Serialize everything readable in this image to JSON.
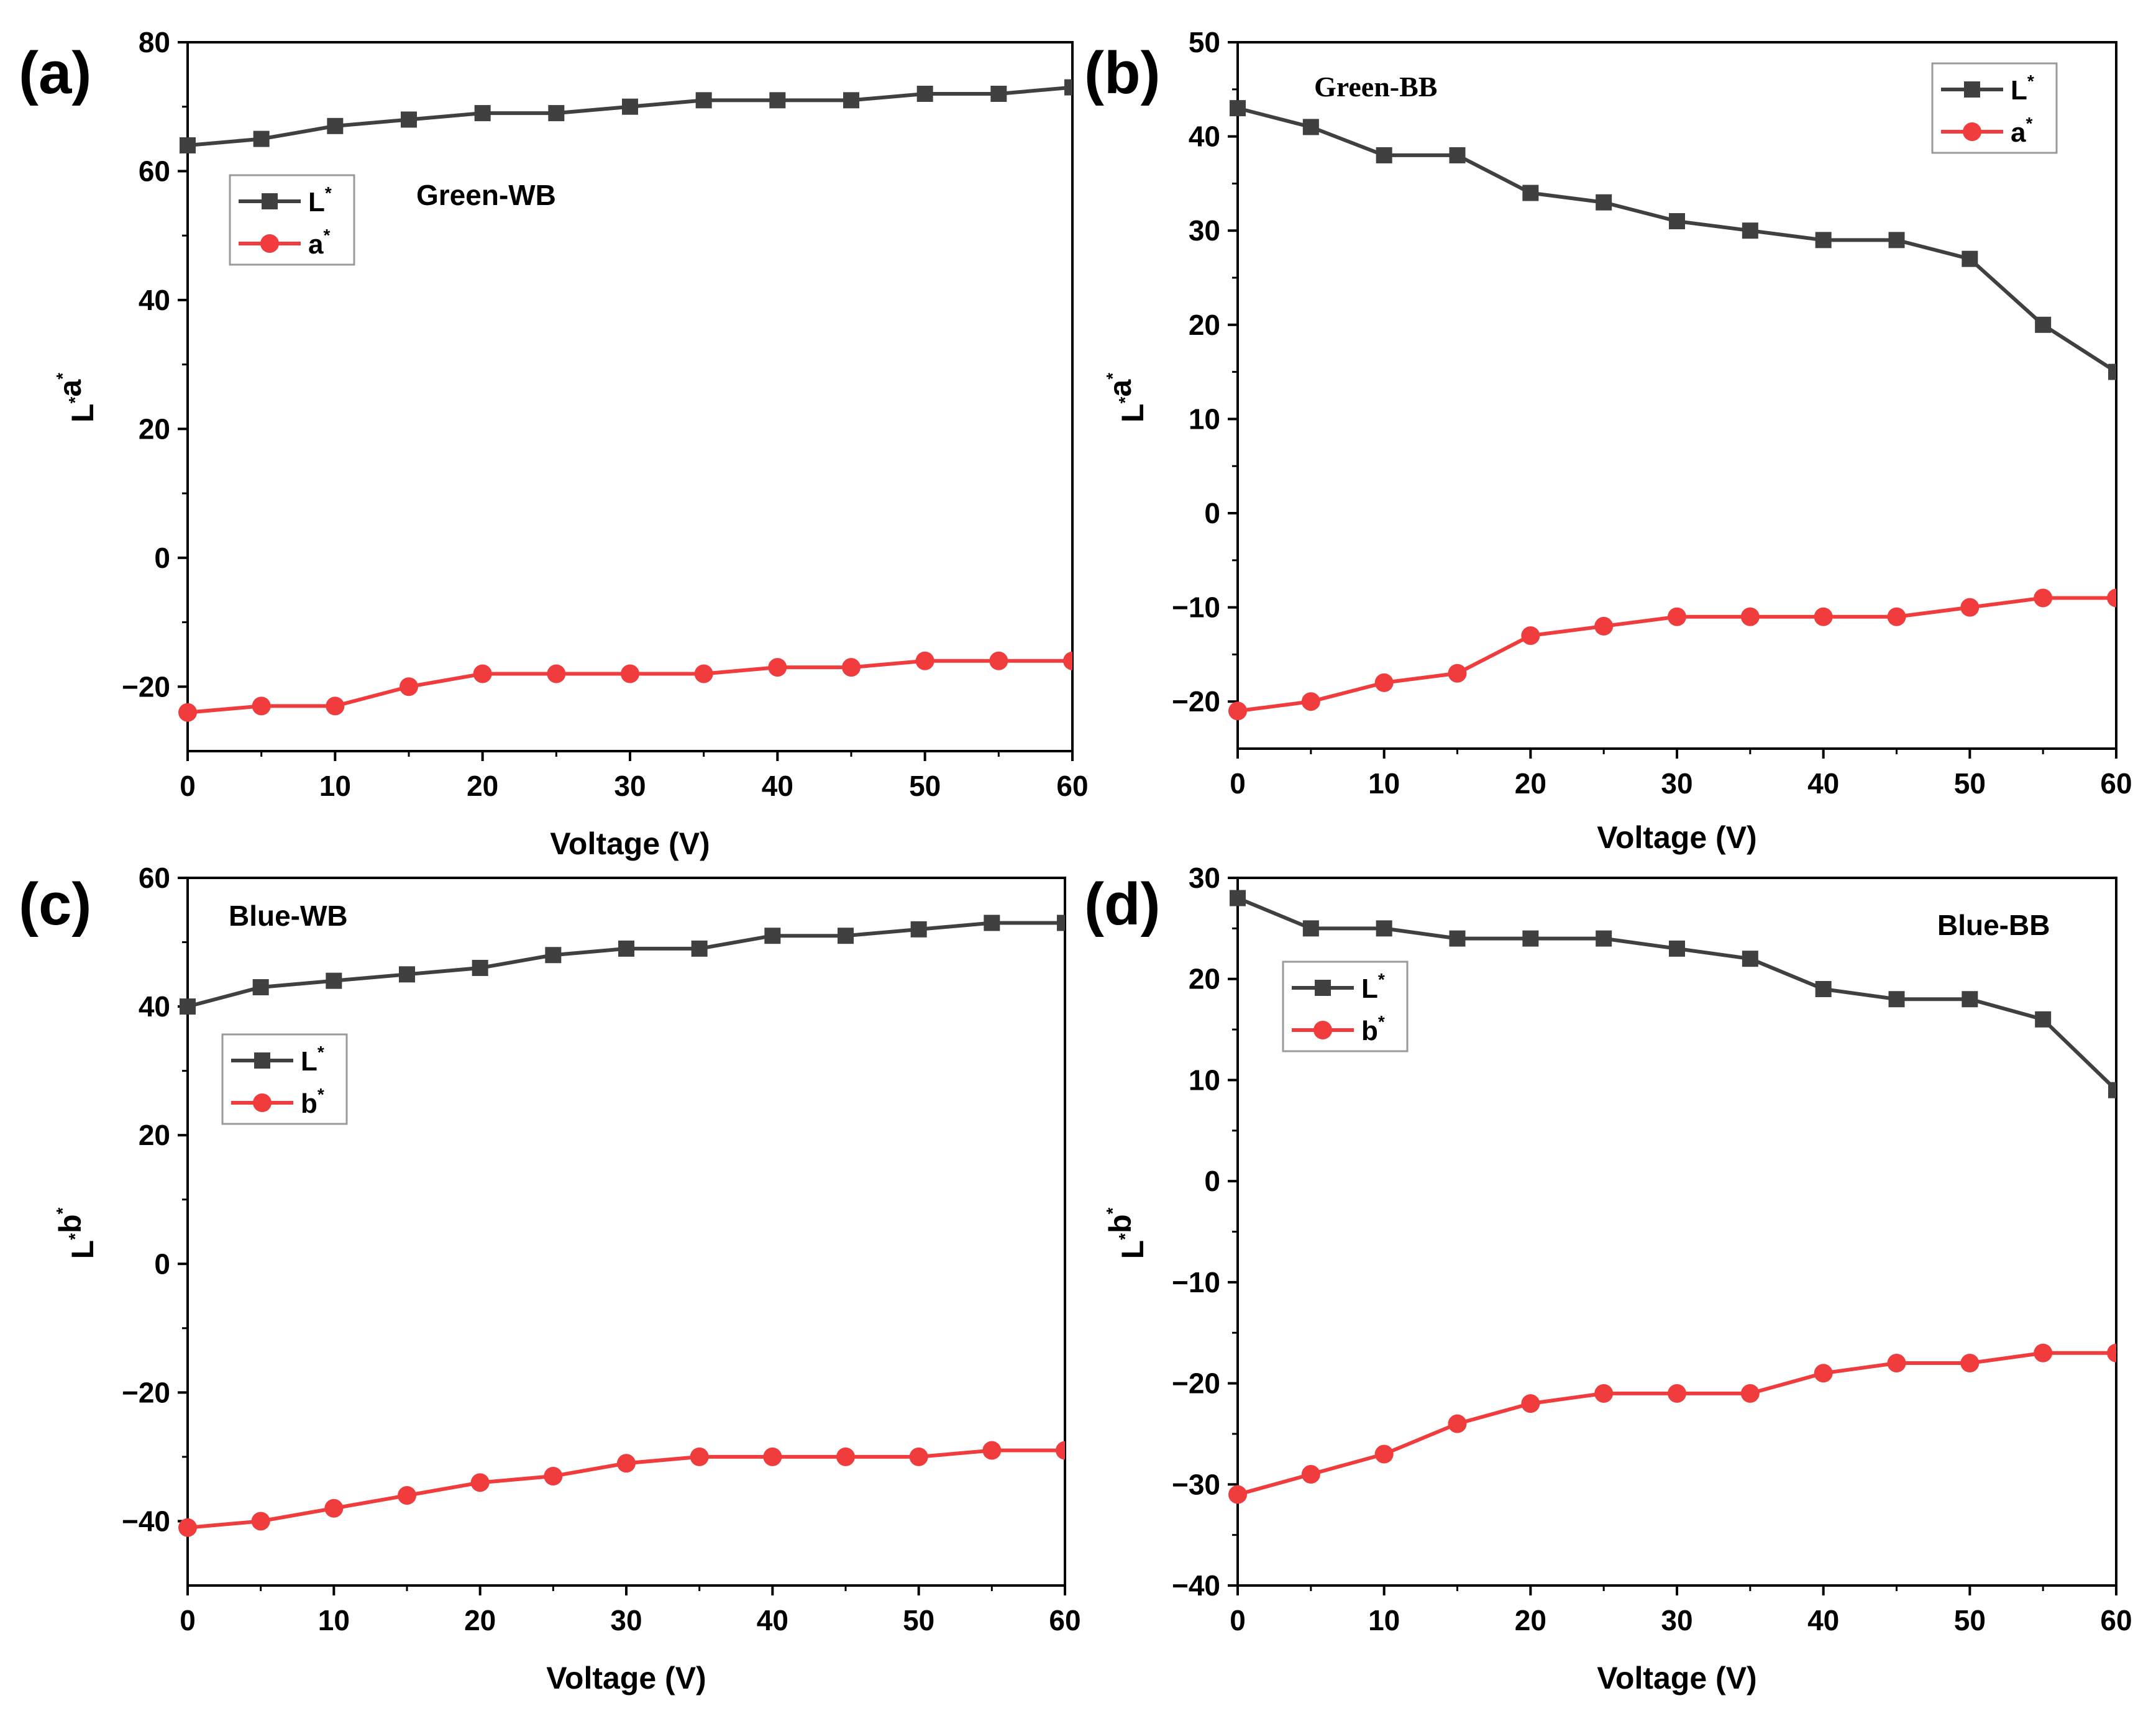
{
  "chart_data": [
    {
      "type": "line",
      "panel_label": "(a)",
      "annotation": "Green-WB",
      "xlabel": "Voltage (V)",
      "ylabel": "L*a*",
      "xlim": [
        0,
        60
      ],
      "ylim": [
        -30,
        80
      ],
      "xticks": [
        0,
        10,
        20,
        30,
        40,
        50,
        60
      ],
      "yticks": [
        -20,
        0,
        20,
        40,
        60,
        80
      ],
      "grid": false,
      "legend_placement": "upper-left",
      "x": [
        0,
        5,
        10,
        15,
        20,
        25,
        30,
        35,
        40,
        45,
        50,
        55,
        60
      ],
      "series": [
        {
          "name": "L*",
          "color": "#404040",
          "marker": "square",
          "values": [
            64,
            65,
            67,
            68,
            69,
            69,
            70,
            71,
            71,
            71,
            72,
            72,
            73
          ]
        },
        {
          "name": "a*",
          "color": "#f03c3c",
          "marker": "circle",
          "values": [
            -24,
            -23,
            -23,
            -20,
            -18,
            -18,
            -18,
            -18,
            -17,
            -17,
            -16,
            -16,
            -16
          ]
        }
      ]
    },
    {
      "type": "line",
      "panel_label": "(b)",
      "annotation": "Green-BB",
      "xlabel": "Voltage (V)",
      "ylabel": "L*a*",
      "xlim": [
        0,
        60
      ],
      "ylim": [
        -25,
        50
      ],
      "xticks": [
        0,
        10,
        20,
        30,
        40,
        50,
        60
      ],
      "yticks": [
        -20,
        -10,
        0,
        10,
        20,
        30,
        40,
        50
      ],
      "grid": false,
      "legend_placement": "top-right",
      "x": [
        0,
        5,
        10,
        15,
        20,
        25,
        30,
        35,
        40,
        45,
        50,
        55,
        60
      ],
      "series": [
        {
          "name": "L*",
          "color": "#404040",
          "marker": "square",
          "values": [
            43,
            41,
            38,
            38,
            34,
            33,
            31,
            30,
            29,
            29,
            27,
            20,
            15
          ]
        },
        {
          "name": "a*",
          "color": "#f03c3c",
          "marker": "circle",
          "values": [
            -21,
            -20,
            -18,
            -17,
            -13,
            -12,
            -11,
            -11,
            -11,
            -11,
            -10,
            -9,
            -9
          ]
        }
      ]
    },
    {
      "type": "line",
      "panel_label": "(c)",
      "annotation": "Blue-WB",
      "xlabel": "Voltage (V)",
      "ylabel": "L*b*",
      "xlim": [
        0,
        60
      ],
      "ylim": [
        -50,
        60
      ],
      "xticks": [
        0,
        10,
        20,
        30,
        40,
        50,
        60
      ],
      "yticks": [
        -40,
        -20,
        0,
        20,
        40,
        60
      ],
      "grid": false,
      "legend_placement": "upper-left",
      "x": [
        0,
        5,
        10,
        15,
        20,
        25,
        30,
        35,
        40,
        45,
        50,
        55,
        60
      ],
      "series": [
        {
          "name": "L*",
          "color": "#404040",
          "marker": "square",
          "values": [
            40,
            43,
            44,
            45,
            46,
            48,
            49,
            49,
            51,
            51,
            52,
            53,
            53
          ]
        },
        {
          "name": "b*",
          "color": "#f03c3c",
          "marker": "circle",
          "values": [
            -41,
            -40,
            -38,
            -36,
            -34,
            -33,
            -31,
            -30,
            -30,
            -30,
            -30,
            -29,
            -29
          ]
        }
      ]
    },
    {
      "type": "line",
      "panel_label": "(d)",
      "annotation": "Blue-BB",
      "xlabel": "Voltage (V)",
      "ylabel": "L*b*",
      "xlim": [
        0,
        60
      ],
      "ylim": [
        -40,
        30
      ],
      "xticks": [
        0,
        10,
        20,
        30,
        40,
        50,
        60
      ],
      "yticks": [
        -40,
        -30,
        -20,
        -10,
        0,
        10,
        20,
        30
      ],
      "grid": false,
      "legend_placement": "upper-left",
      "x": [
        0,
        5,
        10,
        15,
        20,
        25,
        30,
        35,
        40,
        45,
        50,
        55,
        60
      ],
      "series": [
        {
          "name": "L*",
          "color": "#404040",
          "marker": "square",
          "values": [
            28,
            25,
            25,
            24,
            24,
            24,
            23,
            22,
            19,
            18,
            18,
            16,
            9
          ]
        },
        {
          "name": "b*",
          "color": "#f03c3c",
          "marker": "circle",
          "values": [
            -31,
            -29,
            -27,
            -24,
            -22,
            -21,
            -21,
            -21,
            -19,
            -18,
            -18,
            -17,
            -17
          ]
        }
      ]
    }
  ]
}
